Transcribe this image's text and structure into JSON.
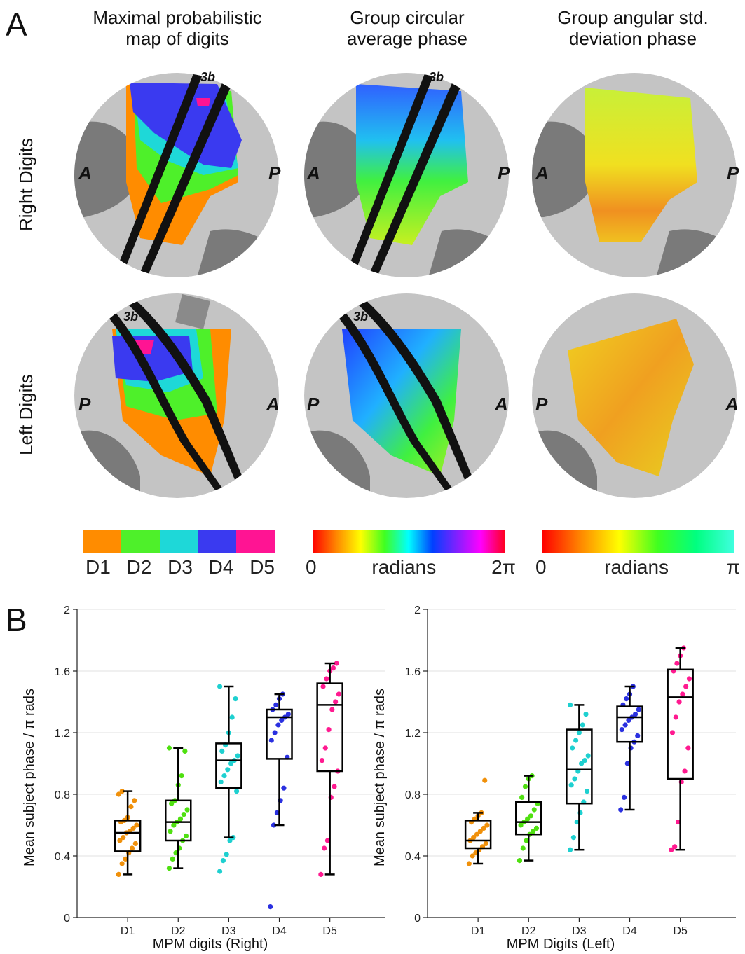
{
  "panelA": {
    "letter": "A",
    "columns": [
      {
        "line1": "Maximal probabilistic",
        "line2": "map of digits"
      },
      {
        "line1": "Group circular",
        "line2": "average phase"
      },
      {
        "line1": "Group angular std.",
        "line2": "deviation phase"
      }
    ],
    "rows": [
      "Right Digits",
      "Left Digits"
    ],
    "orientation": {
      "right": {
        "left": "A",
        "right": "P"
      },
      "left": {
        "left": "P",
        "right": "A"
      }
    },
    "area_label": "3b",
    "colorbars": {
      "digits": {
        "labels": [
          "D1",
          "D2",
          "D3",
          "D4",
          "D5"
        ],
        "colors": [
          "#ff8c00",
          "#4ef02a",
          "#1ed8d8",
          "#3a3af0",
          "#ff1493"
        ]
      },
      "phase": {
        "min": "0",
        "unit": "radians",
        "max": "2π"
      },
      "std": {
        "min": "0",
        "unit": "radians",
        "max": "π"
      }
    }
  },
  "panelB": {
    "letter": "B",
    "y_title": "Mean subject phase / π rads"
  },
  "chart_data": [
    {
      "type": "box",
      "xlabel": "MPM digits (Right)",
      "ylabel": "Mean subject phase / π rads",
      "categories": [
        "D1",
        "D2",
        "D3",
        "D4",
        "D5"
      ],
      "colors": [
        "#f0900a",
        "#4fe010",
        "#1ed0d0",
        "#2a30e0",
        "#ff1a90"
      ],
      "ylim": [
        0,
        2
      ],
      "yticks": [
        0,
        0.4,
        0.8,
        1.2,
        1.6,
        2
      ],
      "grid": true,
      "boxes": [
        {
          "q1": 0.43,
          "median": 0.55,
          "q3": 0.63,
          "whisker_low": 0.28,
          "whisker_high": 0.82
        },
        {
          "q1": 0.5,
          "median": 0.62,
          "q3": 0.76,
          "whisker_low": 0.32,
          "whisker_high": 1.1
        },
        {
          "q1": 0.84,
          "median": 1.02,
          "q3": 1.13,
          "whisker_low": 0.52,
          "whisker_high": 1.5
        },
        {
          "q1": 1.03,
          "median": 1.3,
          "q3": 1.35,
          "whisker_low": 0.6,
          "whisker_high": 1.45
        },
        {
          "q1": 0.95,
          "median": 1.38,
          "q3": 1.52,
          "whisker_low": 0.28,
          "whisker_high": 1.65
        }
      ],
      "points": [
        [
          0.28,
          0.35,
          0.38,
          0.42,
          0.45,
          0.48,
          0.5,
          0.52,
          0.55,
          0.56,
          0.58,
          0.6,
          0.62,
          0.63,
          0.65,
          0.72,
          0.76,
          0.8,
          0.82
        ],
        [
          0.32,
          0.38,
          0.42,
          0.45,
          0.5,
          0.53,
          0.56,
          0.6,
          0.62,
          0.64,
          0.67,
          0.7,
          0.74,
          0.76,
          0.86,
          0.92,
          1.08,
          1.1
        ],
        [
          0.3,
          0.37,
          0.41,
          0.5,
          0.52,
          0.82,
          0.88,
          0.92,
          0.96,
          1.0,
          1.02,
          1.05,
          1.08,
          1.12,
          1.2,
          1.3,
          1.42,
          1.5
        ],
        [
          0.07,
          0.6,
          0.68,
          0.76,
          0.84,
          1.04,
          1.15,
          1.2,
          1.25,
          1.28,
          1.3,
          1.32,
          1.35,
          1.38,
          1.42,
          1.45
        ],
        [
          0.28,
          0.45,
          0.5,
          0.78,
          0.85,
          0.95,
          1.02,
          1.1,
          1.22,
          1.35,
          1.4,
          1.45,
          1.5,
          1.55,
          1.6,
          1.62,
          1.65
        ]
      ]
    },
    {
      "type": "box",
      "xlabel": "MPM Digits (Left)",
      "ylabel": "Mean subject phase / π rads",
      "categories": [
        "D1",
        "D2",
        "D3",
        "D4",
        "D5"
      ],
      "colors": [
        "#f0900a",
        "#4fe010",
        "#1ed0d0",
        "#2a30e0",
        "#ff1a90"
      ],
      "ylim": [
        0,
        2
      ],
      "yticks": [
        0,
        0.4,
        0.8,
        1.2,
        1.6,
        2
      ],
      "grid": true,
      "boxes": [
        {
          "q1": 0.45,
          "median": 0.5,
          "q3": 0.63,
          "whisker_low": 0.35,
          "whisker_high": 0.68
        },
        {
          "q1": 0.54,
          "median": 0.62,
          "q3": 0.75,
          "whisker_low": 0.37,
          "whisker_high": 0.92
        },
        {
          "q1": 0.74,
          "median": 0.96,
          "q3": 1.22,
          "whisker_low": 0.44,
          "whisker_high": 1.38
        },
        {
          "q1": 1.14,
          "median": 1.3,
          "q3": 1.37,
          "whisker_low": 0.7,
          "whisker_high": 1.5
        },
        {
          "q1": 0.9,
          "median": 1.43,
          "q3": 1.61,
          "whisker_low": 0.44,
          "whisker_high": 1.75
        }
      ],
      "points": [
        [
          0.35,
          0.4,
          0.42,
          0.44,
          0.46,
          0.48,
          0.5,
          0.52,
          0.54,
          0.56,
          0.58,
          0.6,
          0.62,
          0.64,
          0.66,
          0.68,
          0.89
        ],
        [
          0.37,
          0.45,
          0.5,
          0.54,
          0.56,
          0.58,
          0.6,
          0.62,
          0.64,
          0.66,
          0.7,
          0.74,
          0.78,
          0.85,
          0.9,
          0.92
        ],
        [
          0.44,
          0.52,
          0.62,
          0.68,
          0.75,
          0.82,
          0.86,
          0.9,
          0.95,
          1.0,
          1.02,
          1.05,
          1.1,
          1.15,
          1.2,
          1.25,
          1.32,
          1.38
        ],
        [
          0.7,
          0.78,
          1.0,
          1.1,
          1.14,
          1.18,
          1.22,
          1.25,
          1.28,
          1.3,
          1.32,
          1.35,
          1.38,
          1.42,
          1.45,
          1.5
        ],
        [
          0.44,
          0.46,
          0.62,
          0.88,
          0.95,
          1.1,
          1.2,
          1.3,
          1.4,
          1.45,
          1.5,
          1.55,
          1.6,
          1.65,
          1.7,
          1.75
        ]
      ]
    }
  ]
}
